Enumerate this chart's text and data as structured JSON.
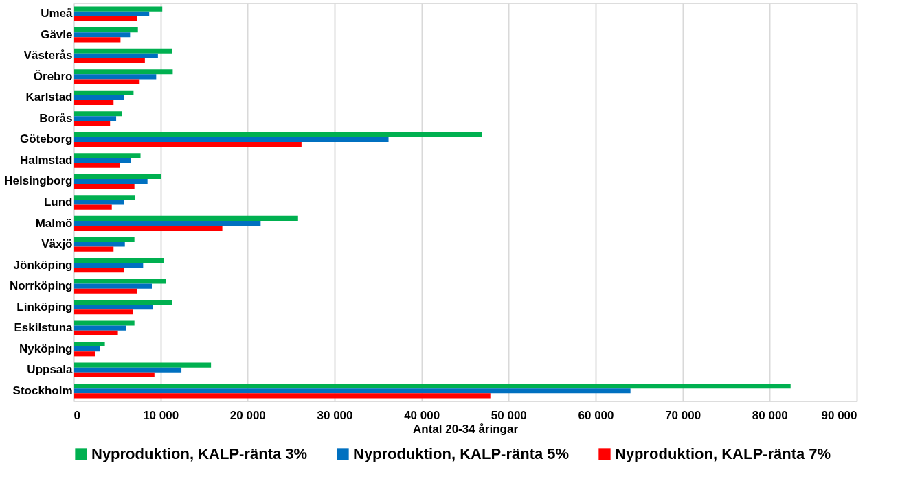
{
  "chart_data": {
    "type": "bar",
    "orientation": "horizontal",
    "xlabel": "Antal 20-34 åringar",
    "categories": [
      "Umeå",
      "Gävle",
      "Västerås",
      "Örebro",
      "Karlstad",
      "Borås",
      "Göteborg",
      "Halmstad",
      "Helsingborg",
      "Lund",
      "Malmö",
      "Växjö",
      "Jönköping",
      "Norrköping",
      "Linköping",
      "Eskilstuna",
      "Nyköping",
      "Uppsala",
      "Stockholm"
    ],
    "series": [
      {
        "name": "Nyproduktion, KALP-ränta 3%",
        "color": "#00b050",
        "values": [
          10200,
          7400,
          11300,
          11400,
          6900,
          5600,
          46900,
          7700,
          10100,
          7100,
          25800,
          7000,
          10400,
          10600,
          11300,
          7000,
          3600,
          15800,
          82400
        ]
      },
      {
        "name": "Nyproduktion, KALP-ränta 5%",
        "color": "#0070c0",
        "values": [
          8700,
          6500,
          9700,
          9500,
          5800,
          4900,
          36200,
          6600,
          8500,
          5800,
          21500,
          5900,
          8000,
          9000,
          9100,
          6000,
          3000,
          12400,
          64000
        ]
      },
      {
        "name": "Nyproduktion, KALP-ränta 7%",
        "color": "#ff0000",
        "values": [
          7300,
          5400,
          8200,
          7600,
          4600,
          4200,
          26200,
          5300,
          7000,
          4400,
          17100,
          4600,
          5800,
          7300,
          6800,
          5100,
          2500,
          9300,
          47900
        ]
      }
    ],
    "xlim": [
      0,
      90000
    ],
    "xticks": [
      0,
      {
        "value": 10000,
        "label": "10 000"
      },
      {
        "value": 20000,
        "label": "20 000"
      },
      {
        "value": 30000,
        "label": "30 000"
      },
      {
        "value": 40000,
        "label": "40 000"
      },
      {
        "value": 50000,
        "label": "50 000"
      },
      {
        "value": 60000,
        "label": "60 000"
      },
      {
        "value": 70000,
        "label": "70 000"
      },
      {
        "value": 80000,
        "label": "80 000"
      },
      {
        "value": 90000,
        "label": "90 000"
      }
    ],
    "grid": "x",
    "legend": "bottom"
  }
}
